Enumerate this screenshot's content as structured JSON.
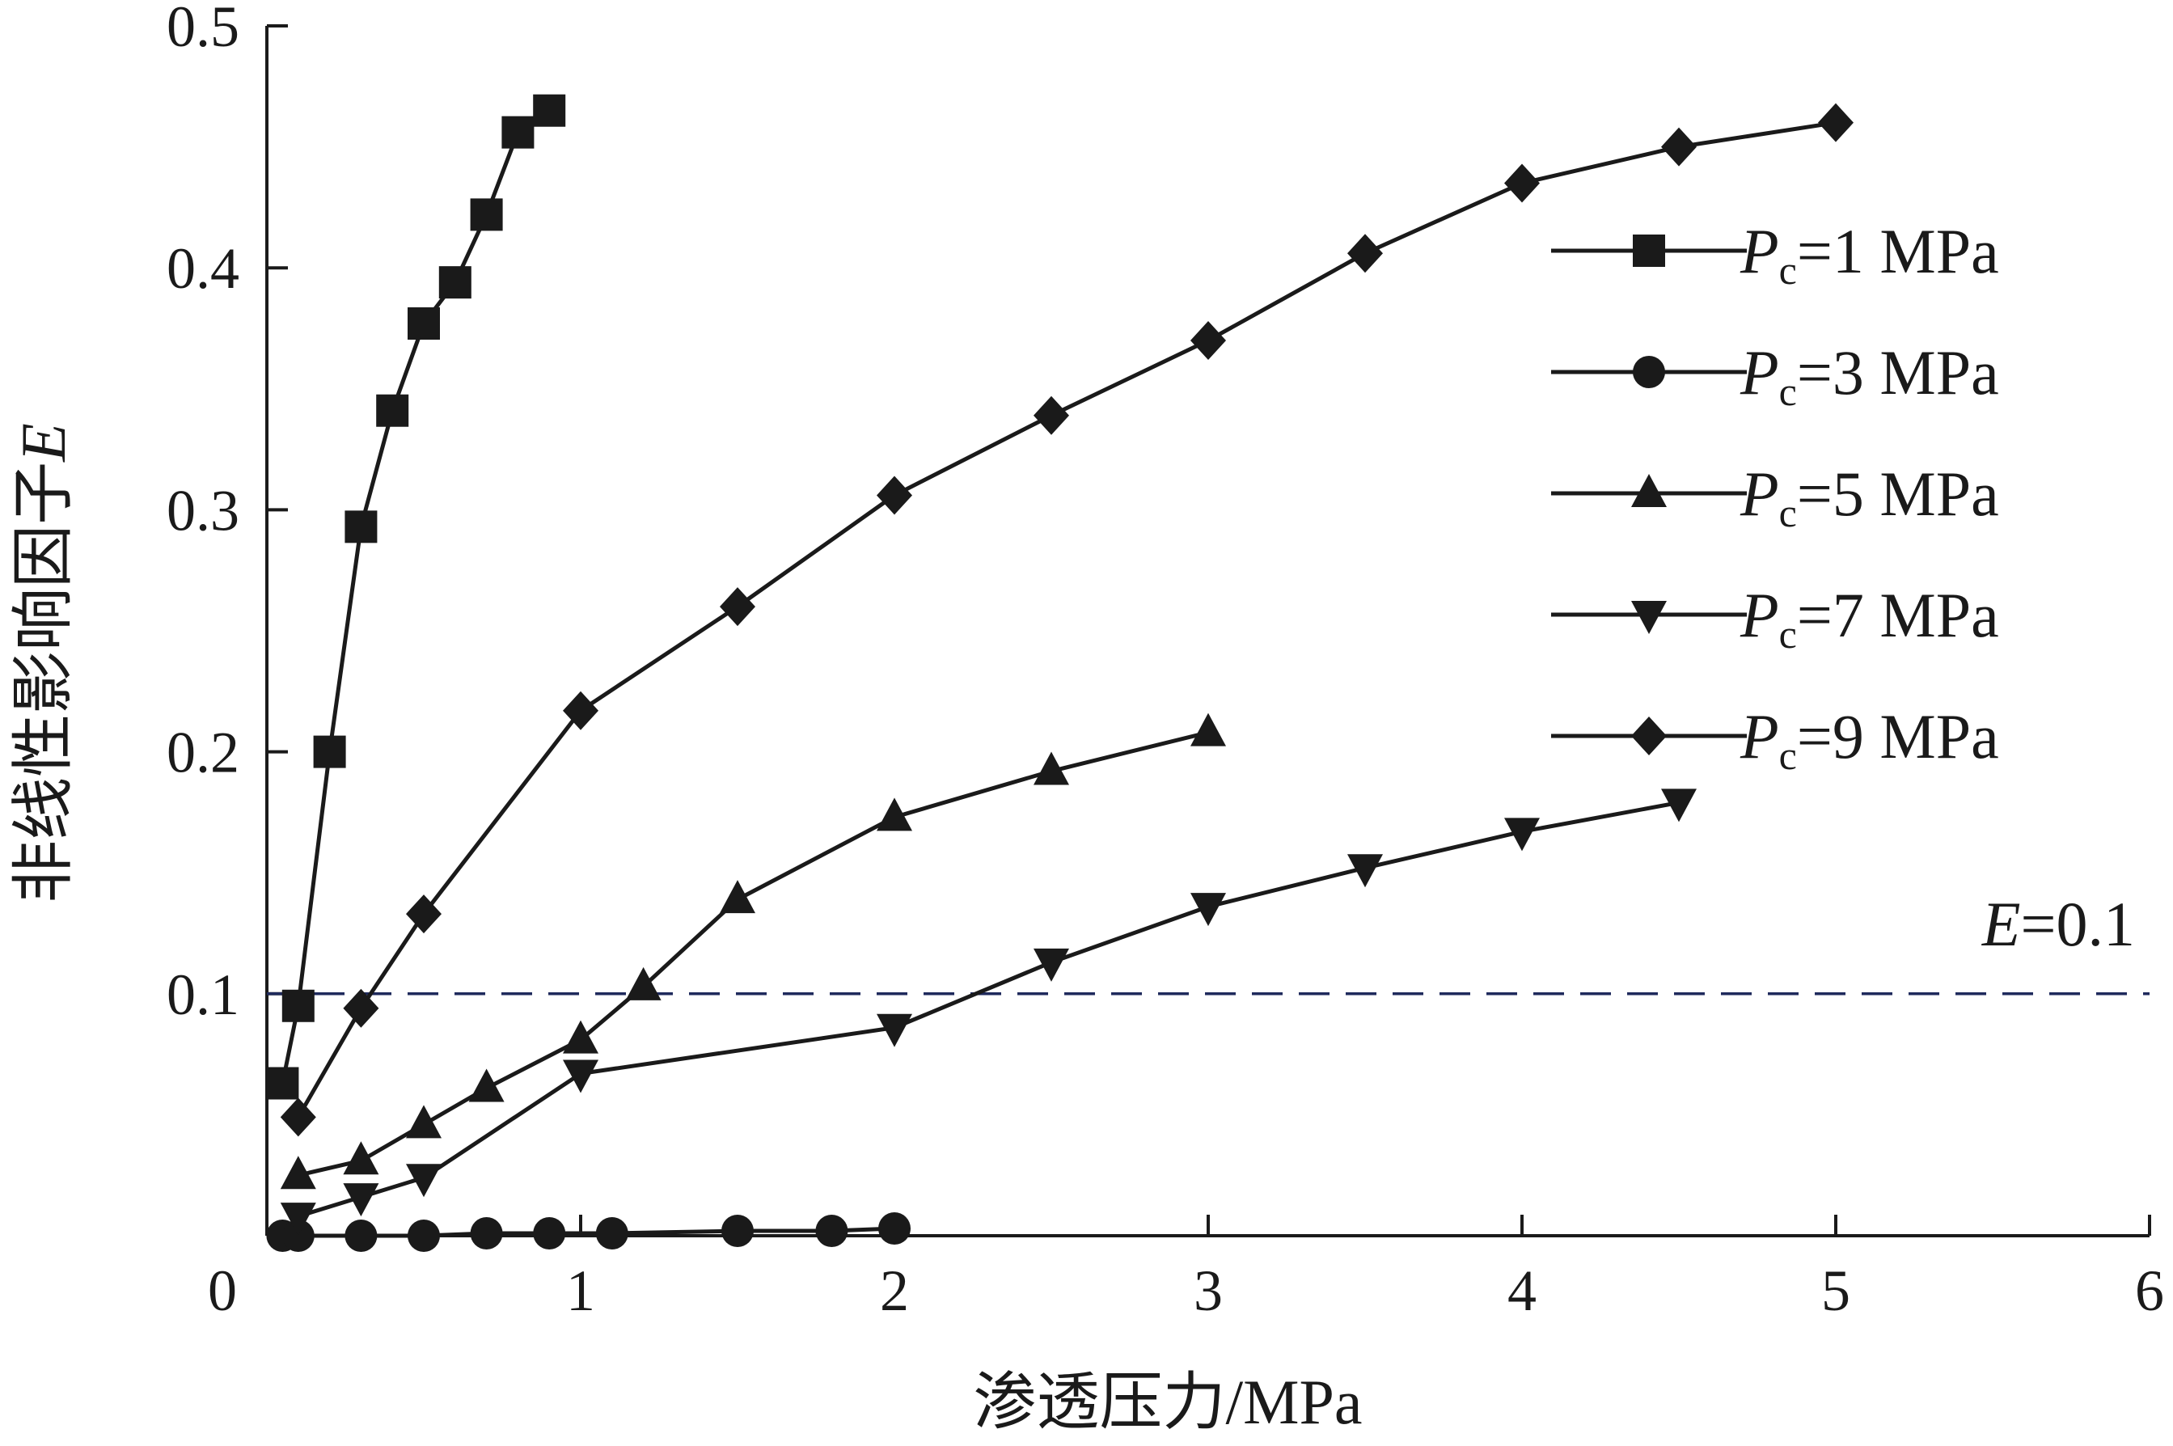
{
  "chart_data": {
    "type": "line",
    "title": "",
    "xlabel": "渗透压力/MPa",
    "ylabel_text": "非线性影响因子",
    "ylabel_var": "E",
    "xlim": [
      0,
      6
    ],
    "ylim": [
      0,
      0.5
    ],
    "xticks": [
      "0",
      "1",
      "2",
      "3",
      "4",
      "5",
      "6"
    ],
    "yticks": [
      "0.1",
      "0.2",
      "0.3",
      "0.4",
      "0.5"
    ],
    "legend_position": "top-right",
    "reference_line": {
      "y": 0.1,
      "label_var": "E",
      "label_value": "=0.1",
      "color": "#1f2a5c",
      "style": "dashed"
    },
    "series": [
      {
        "name": "Pc=1 MPa",
        "legend_var": "P",
        "legend_sub": "c",
        "legend_rest": "=1 MPa",
        "marker": "square",
        "x": [
          0.05,
          0.1,
          0.2,
          0.3,
          0.4,
          0.5,
          0.6,
          0.7,
          0.8,
          0.9
        ],
        "y": [
          0.063,
          0.095,
          0.2,
          0.293,
          0.341,
          0.377,
          0.394,
          0.422,
          0.456,
          0.465
        ]
      },
      {
        "name": "Pc=3 MPa",
        "legend_var": "P",
        "legend_sub": "c",
        "legend_rest": "=3 MPa",
        "marker": "circle",
        "x": [
          0.05,
          0.1,
          0.3,
          0.5,
          0.7,
          0.9,
          1.1,
          1.5,
          1.8,
          2.0
        ],
        "y": [
          0.0,
          0.0,
          0.0,
          0.0,
          0.001,
          0.001,
          0.001,
          0.002,
          0.002,
          0.003
        ]
      },
      {
        "name": "Pc=5 MPa",
        "legend_var": "P",
        "legend_sub": "c",
        "legend_rest": "=5 MPa",
        "marker": "triangle-up",
        "x": [
          0.1,
          0.3,
          0.5,
          0.7,
          1.0,
          1.2,
          1.5,
          2.0,
          2.5,
          3.0
        ],
        "y": [
          0.025,
          0.031,
          0.046,
          0.061,
          0.081,
          0.103,
          0.139,
          0.173,
          0.192,
          0.208
        ]
      },
      {
        "name": "Pc=7 MPa",
        "legend_var": "P",
        "legend_sub": "c",
        "legend_rest": "=7 MPa",
        "marker": "triangle-down",
        "x": [
          0.1,
          0.3,
          0.5,
          1.0,
          2.0,
          2.5,
          3.0,
          3.5,
          4.0,
          4.5
        ],
        "y": [
          0.008,
          0.016,
          0.024,
          0.067,
          0.086,
          0.113,
          0.136,
          0.152,
          0.167,
          0.179
        ]
      },
      {
        "name": "Pc=9 MPa",
        "legend_var": "P",
        "legend_sub": "c",
        "legend_rest": "=9 MPa",
        "marker": "diamond",
        "x": [
          0.1,
          0.3,
          0.5,
          1.0,
          1.5,
          2.0,
          2.5,
          3.0,
          3.5,
          4.0,
          4.5,
          5.0
        ],
        "y": [
          0.049,
          0.094,
          0.133,
          0.217,
          0.26,
          0.306,
          0.339,
          0.37,
          0.406,
          0.435,
          0.45,
          0.46
        ]
      }
    ]
  },
  "colors": {
    "series": "#1a1a1a",
    "axis": "#1a1a1a",
    "reference": "#1f2a5c"
  }
}
